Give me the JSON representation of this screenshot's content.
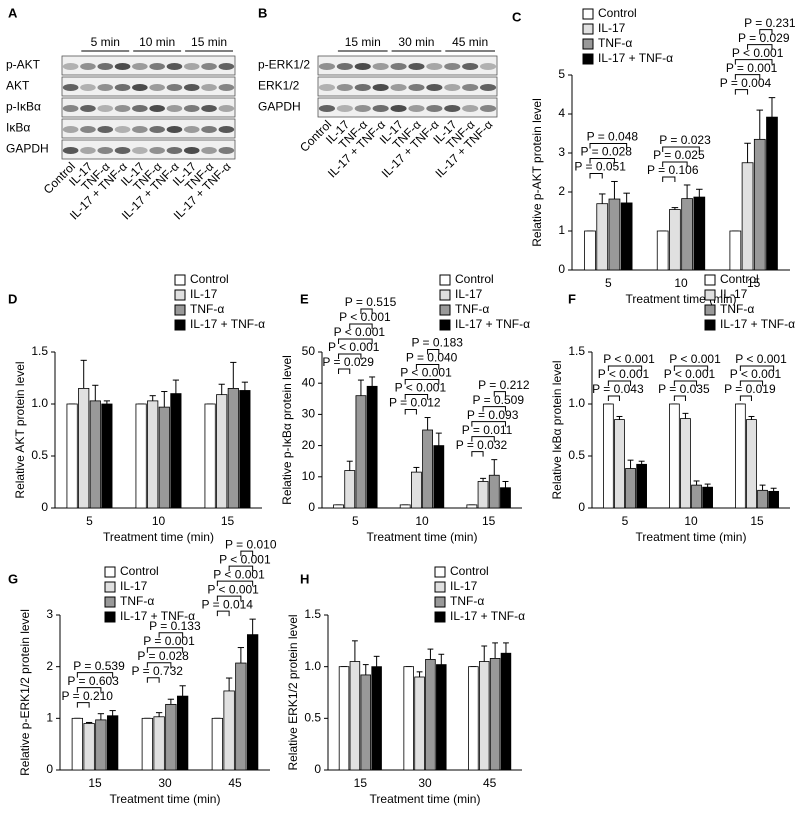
{
  "blots": [
    {
      "label": "A",
      "time_labels": [
        "5 min",
        "10 min",
        "15 min"
      ],
      "rows": [
        "p-AKT",
        "AKT",
        "p-IκBα",
        "IκBα",
        "GAPDH"
      ],
      "lanes": [
        "Control",
        "IL-17",
        "TNF-α",
        "IL-17 + TNF-α",
        "IL-17",
        "TNF-α",
        "IL-17 + TNF-α",
        "IL-17",
        "TNF-α",
        "IL-17 + TNF-α"
      ]
    },
    {
      "label": "B",
      "time_labels": [
        "15 min",
        "30 min",
        "45 min"
      ],
      "rows": [
        "p-ERK1/2",
        "ERK1/2",
        "GAPDH"
      ],
      "lanes": [
        "Control",
        "IL-17",
        "TNF-α",
        "IL-17 + TNF-α",
        "IL-17",
        "TNF-α",
        "IL-17 + TNF-α",
        "IL-17",
        "TNF-α",
        "IL-17 + TNF-α"
      ]
    }
  ],
  "chart_data": [
    {
      "type": "bar",
      "label": "C",
      "y_label": "Relative p-AKT protein level",
      "x_label": "Treatment time (min)",
      "categories": [
        "5",
        "10",
        "15"
      ],
      "ylim": [
        0,
        5
      ],
      "yticks": [
        0,
        1,
        2,
        3,
        4,
        5
      ],
      "series": [
        {
          "name": "Control",
          "color": "#ffffff",
          "values": [
            1,
            1,
            1
          ],
          "errors": [
            0,
            0,
            0
          ]
        },
        {
          "name": "IL-17",
          "color": "#e0e0e0",
          "values": [
            1.7,
            1.55,
            2.75
          ],
          "errors": [
            0.25,
            0.05,
            0.5
          ]
        },
        {
          "name": "TNF-α",
          "color": "#999999",
          "values": [
            1.82,
            1.83,
            3.35
          ],
          "errors": [
            0.45,
            0.35,
            0.75
          ]
        },
        {
          "name": "IL-17 + TNF-α",
          "color": "#000000",
          "values": [
            1.72,
            1.87,
            3.92
          ],
          "errors": [
            0.25,
            0.2,
            0.5
          ]
        }
      ],
      "annotations": [
        {
          "group": 0,
          "from": 0,
          "to": 1,
          "label": "P = 0.051"
        },
        {
          "group": 0,
          "from": 0,
          "to": 2,
          "label": "P = 0.028"
        },
        {
          "group": 0,
          "from": 0,
          "to": 3,
          "label": "P = 0.048"
        },
        {
          "group": 1,
          "from": 0,
          "to": 1,
          "label": "P = 0.106"
        },
        {
          "group": 1,
          "from": 0,
          "to": 2,
          "label": "P = 0.025"
        },
        {
          "group": 1,
          "from": 0,
          "to": 3,
          "label": "P = 0.023"
        },
        {
          "group": 2,
          "from": 0,
          "to": 1,
          "label": "P = 0.004"
        },
        {
          "group": 2,
          "from": 0,
          "to": 2,
          "label": "P = 0.001"
        },
        {
          "group": 2,
          "from": 0,
          "to": 3,
          "label": "P < 0.001"
        },
        {
          "group": 2,
          "from": 1,
          "to": 3,
          "label": "P = 0.029"
        },
        {
          "group": 2,
          "from": 2,
          "to": 3,
          "label": "P = 0.231"
        }
      ]
    },
    {
      "type": "bar",
      "label": "D",
      "y_label": "Relative AKT protein level",
      "x_label": "Treatment time (min)",
      "categories": [
        "5",
        "10",
        "15"
      ],
      "ylim": [
        0,
        1.5
      ],
      "yticks": [
        0,
        0.5,
        {
          "value": 1,
          "label": "1.0"
        },
        1.5
      ],
      "series": [
        {
          "name": "Control",
          "color": "#ffffff",
          "values": [
            1,
            1,
            1
          ],
          "errors": [
            0,
            0,
            0
          ]
        },
        {
          "name": "IL-17",
          "color": "#e0e0e0",
          "values": [
            1.15,
            1.03,
            1.09
          ],
          "errors": [
            0.27,
            0.05,
            0.1
          ]
        },
        {
          "name": "TNF-α",
          "color": "#999999",
          "values": [
            1.03,
            0.97,
            1.15
          ],
          "errors": [
            0.15,
            0.15,
            0.25
          ]
        },
        {
          "name": "IL-17 + TNF-α",
          "color": "#000000",
          "values": [
            1.0,
            1.1,
            1.13
          ],
          "errors": [
            0.03,
            0.13,
            0.08
          ]
        }
      ],
      "annotations": []
    },
    {
      "type": "bar",
      "label": "E",
      "y_label": "Relative p-IκBα protein level",
      "x_label": "Treatment time (min)",
      "categories": [
        "5",
        "10",
        "15"
      ],
      "ylim": [
        0,
        50
      ],
      "yticks": [
        0,
        10,
        20,
        30,
        40,
        50
      ],
      "series": [
        {
          "name": "Control",
          "color": "#ffffff",
          "values": [
            1,
            1,
            1
          ],
          "errors": [
            0,
            0,
            0
          ]
        },
        {
          "name": "IL-17",
          "color": "#e0e0e0",
          "values": [
            12,
            11.5,
            8.5
          ],
          "errors": [
            3,
            1.5,
            1
          ]
        },
        {
          "name": "TNF-α",
          "color": "#999999",
          "values": [
            36,
            25,
            10.5
          ],
          "errors": [
            5,
            4,
            5
          ]
        },
        {
          "name": "IL-17 + TNF-α",
          "color": "#000000",
          "values": [
            39,
            20,
            6.5
          ],
          "errors": [
            3,
            4,
            2
          ]
        }
      ],
      "annotations": [
        {
          "group": 0,
          "from": 0,
          "to": 1,
          "label": "P = 0.029"
        },
        {
          "group": 0,
          "from": 0,
          "to": 2,
          "label": "P < 0.001"
        },
        {
          "group": 0,
          "from": 0,
          "to": 3,
          "label": "P < 0.001"
        },
        {
          "group": 0,
          "from": 1,
          "to": 3,
          "label": "P < 0.001"
        },
        {
          "group": 0,
          "from": 2,
          "to": 3,
          "label": "P = 0.515"
        },
        {
          "group": 1,
          "from": 0,
          "to": 1,
          "label": "P = 0.012"
        },
        {
          "group": 1,
          "from": 0,
          "to": 2,
          "label": "P < 0.001"
        },
        {
          "group": 1,
          "from": 0,
          "to": 3,
          "label": "P < 0.001"
        },
        {
          "group": 1,
          "from": 1,
          "to": 3,
          "label": "P = 0.040"
        },
        {
          "group": 1,
          "from": 2,
          "to": 3,
          "label": "P = 0.183"
        },
        {
          "group": 2,
          "from": 0,
          "to": 1,
          "label": "P = 0.032"
        },
        {
          "group": 2,
          "from": 0,
          "to": 2,
          "label": "P = 0.011"
        },
        {
          "group": 2,
          "from": 0,
          "to": 3,
          "label": "P = 0.093"
        },
        {
          "group": 2,
          "from": 1,
          "to": 3,
          "label": "P = 0.509"
        },
        {
          "group": 2,
          "from": 2,
          "to": 3,
          "label": "P = 0.212"
        }
      ]
    },
    {
      "type": "bar",
      "label": "F",
      "y_label": "Relative IκBα protein level",
      "x_label": "Treatment time (min)",
      "categories": [
        "5",
        "10",
        "15"
      ],
      "ylim": [
        0,
        1.5
      ],
      "yticks": [
        0,
        0.5,
        {
          "value": 1,
          "label": "1.0"
        },
        1.5
      ],
      "series": [
        {
          "name": "Control",
          "color": "#ffffff",
          "values": [
            1,
            1,
            1
          ],
          "errors": [
            0,
            0,
            0
          ]
        },
        {
          "name": "IL-17",
          "color": "#e0e0e0",
          "values": [
            0.85,
            0.86,
            0.85
          ],
          "errors": [
            0.03,
            0.05,
            0.03
          ]
        },
        {
          "name": "TNF-α",
          "color": "#999999",
          "values": [
            0.38,
            0.22,
            0.17
          ],
          "errors": [
            0.08,
            0.04,
            0.05
          ]
        },
        {
          "name": "IL-17 + TNF-α",
          "color": "#000000",
          "values": [
            0.42,
            0.2,
            0.16
          ],
          "errors": [
            0.03,
            0.03,
            0.03
          ]
        }
      ],
      "annotations": [
        {
          "group": 0,
          "from": 0,
          "to": 1,
          "label": "P = 0.043"
        },
        {
          "group": 0,
          "from": 0,
          "to": 2,
          "label": "P < 0.001"
        },
        {
          "group": 0,
          "from": 0,
          "to": 3,
          "label": "P < 0.001"
        },
        {
          "group": 1,
          "from": 0,
          "to": 1,
          "label": "P = 0.035"
        },
        {
          "group": 1,
          "from": 0,
          "to": 2,
          "label": "P < 0.001"
        },
        {
          "group": 1,
          "from": 0,
          "to": 3,
          "label": "P < 0.001"
        },
        {
          "group": 2,
          "from": 0,
          "to": 1,
          "label": "P = 0.019"
        },
        {
          "group": 2,
          "from": 0,
          "to": 2,
          "label": "P < 0.001"
        },
        {
          "group": 2,
          "from": 0,
          "to": 3,
          "label": "P < 0.001"
        }
      ]
    },
    {
      "type": "bar",
      "label": "G",
      "y_label": "Relative p-ERK1/2 protein level",
      "x_label": "Treatment time (min)",
      "categories": [
        "15",
        "30",
        "45"
      ],
      "ylim": [
        0,
        3
      ],
      "yticks": [
        0,
        1,
        2,
        3
      ],
      "series": [
        {
          "name": "Control",
          "color": "#ffffff",
          "values": [
            1,
            1,
            1
          ],
          "errors": [
            0,
            0,
            0
          ]
        },
        {
          "name": "IL-17",
          "color": "#e0e0e0",
          "values": [
            0.9,
            1.03,
            1.53
          ],
          "errors": [
            0.02,
            0.08,
            0.25
          ]
        },
        {
          "name": "TNF-α",
          "color": "#999999",
          "values": [
            0.97,
            1.27,
            2.07
          ],
          "errors": [
            0.12,
            0.1,
            0.3
          ]
        },
        {
          "name": "IL-17 + TNF-α",
          "color": "#000000",
          "values": [
            1.05,
            1.43,
            2.62
          ],
          "errors": [
            0.1,
            0.2,
            0.3
          ]
        }
      ],
      "annotations": [
        {
          "group": 0,
          "from": 0,
          "to": 1,
          "label": "P = 0.210"
        },
        {
          "group": 0,
          "from": 0,
          "to": 2,
          "label": "P = 0.603"
        },
        {
          "group": 0,
          "from": 0,
          "to": 3,
          "label": "P = 0.539"
        },
        {
          "group": 1,
          "from": 0,
          "to": 1,
          "label": "P = 0.732"
        },
        {
          "group": 1,
          "from": 0,
          "to": 2,
          "label": "P = 0.028"
        },
        {
          "group": 1,
          "from": 0,
          "to": 3,
          "label": "P = 0.001"
        },
        {
          "group": 1,
          "from": 1,
          "to": 3,
          "label": "P = 0.133"
        },
        {
          "group": 2,
          "from": 0,
          "to": 1,
          "label": "P = 0.014"
        },
        {
          "group": 2,
          "from": 0,
          "to": 2,
          "label": "P < 0.001"
        },
        {
          "group": 2,
          "from": 0,
          "to": 3,
          "label": "P < 0.001"
        },
        {
          "group": 2,
          "from": 1,
          "to": 3,
          "label": "P < 0.001"
        },
        {
          "group": 2,
          "from": 2,
          "to": 3,
          "label": "P = 0.010"
        }
      ]
    },
    {
      "type": "bar",
      "label": "H",
      "y_label": "Relative ERK1/2 protein level",
      "x_label": "Treatment time (min)",
      "categories": [
        "15",
        "30",
        "45"
      ],
      "ylim": [
        0,
        1.5
      ],
      "yticks": [
        0,
        0.5,
        {
          "value": 1,
          "label": "1.0"
        },
        1.5
      ],
      "series": [
        {
          "name": "Control",
          "color": "#ffffff",
          "values": [
            1,
            1,
            1
          ],
          "errors": [
            0,
            0,
            0
          ]
        },
        {
          "name": "IL-17",
          "color": "#e0e0e0",
          "values": [
            1.05,
            0.9,
            1.05
          ],
          "errors": [
            0.2,
            0.05,
            0.15
          ]
        },
        {
          "name": "TNF-α",
          "color": "#999999",
          "values": [
            0.92,
            1.07,
            1.08
          ],
          "errors": [
            0.1,
            0.1,
            0.15
          ]
        },
        {
          "name": "IL-17 + TNF-α",
          "color": "#000000",
          "values": [
            1.0,
            1.02,
            1.13
          ],
          "errors": [
            0.1,
            0.1,
            0.1
          ]
        }
      ],
      "annotations": []
    }
  ]
}
